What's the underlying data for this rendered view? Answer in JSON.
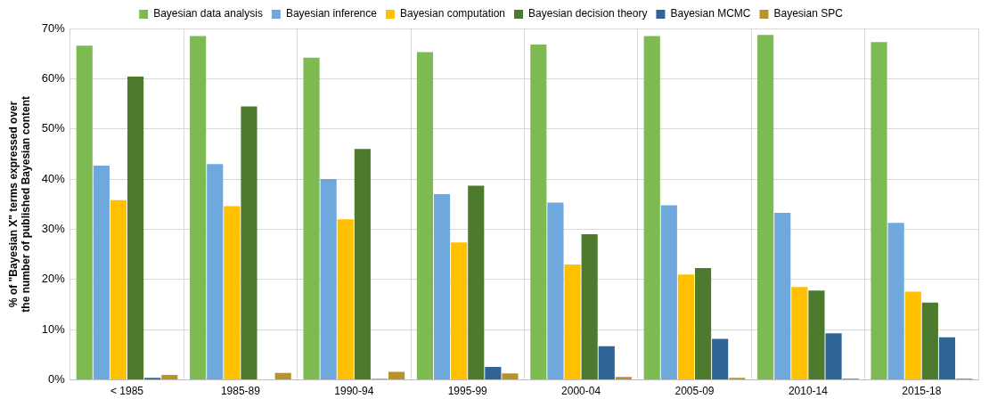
{
  "chart_data": {
    "type": "bar",
    "ylabel": "% of \"Bayesian X\" terms expressed over the number of published Bayesian content",
    "categories": [
      "< 1985",
      "1985-89",
      "1990-94",
      "1995-99",
      "2000-04",
      "2005-09",
      "2010-14",
      "2015-18"
    ],
    "series": [
      {
        "name": "Bayesian data analysis",
        "color": "#7dbb52",
        "values": [
          66.6,
          68.5,
          64.2,
          65.3,
          66.8,
          68.5,
          68.7,
          67.3
        ]
      },
      {
        "name": "Bayesian inference",
        "color": "#6fa8dc",
        "values": [
          42.7,
          43,
          40,
          37,
          35.3,
          34.8,
          33.3,
          31.3
        ]
      },
      {
        "name": "Bayesian computation",
        "color": "#ffc000",
        "values": [
          35.8,
          34.6,
          32,
          27.4,
          23,
          21,
          18.5,
          17.6
        ]
      },
      {
        "name": "Bayesian decision theory",
        "color": "#4e7a2e",
        "values": [
          60.4,
          54.5,
          46,
          38.7,
          29,
          22.3,
          17.8,
          15.4
        ]
      },
      {
        "name": "Bayesian MCMC",
        "color": "#2e6496",
        "values": [
          0.4,
          null,
          0.2,
          2.6,
          6.7,
          8.2,
          9.3,
          8.5
        ]
      },
      {
        "name": "Bayesian SPC",
        "color": "#b8922a",
        "values": [
          1,
          1.4,
          1.6,
          1.3,
          0.6,
          0.4,
          0.3,
          0.3
        ]
      }
    ],
    "ylim": [
      0,
      70
    ],
    "yticks": [
      {
        "value": 0,
        "label": "0%"
      },
      {
        "value": 10,
        "label": "10%"
      },
      {
        "value": 20,
        "label": "20%"
      },
      {
        "value": 30,
        "label": "30%"
      },
      {
        "value": 40,
        "label": "40%"
      },
      {
        "value": 50,
        "label": "50%"
      },
      {
        "value": 60,
        "label": "60%"
      },
      {
        "value": 70,
        "label": "70%"
      }
    ],
    "grid": true,
    "legend": "top"
  }
}
